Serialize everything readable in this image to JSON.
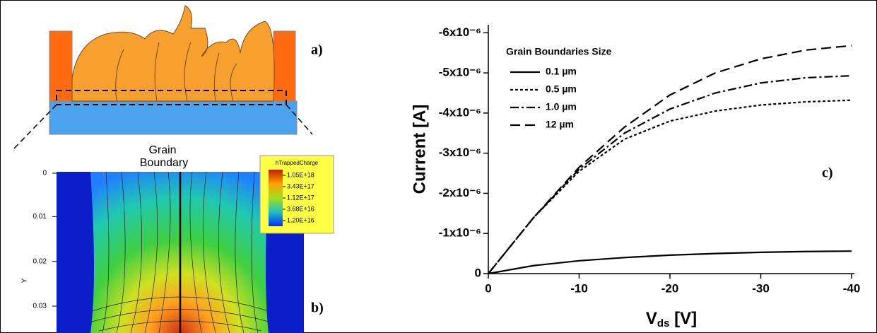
{
  "panel_a": {
    "label": "a)"
  },
  "panel_b": {
    "label": "b)",
    "title_lines": [
      "Grain",
      "Boundary"
    ],
    "ylabel": "Y",
    "yticks": [
      0,
      0.01,
      0.02,
      0.03
    ],
    "ylim": [
      0,
      0.036
    ],
    "colorbar": {
      "title": "hTrappedCharge",
      "ticks": [
        {
          "value": 1.05e+18,
          "label": "1.05E+18"
        },
        {
          "value": 3.43e+17,
          "label": "3.43E+17"
        },
        {
          "value": 1.12e+17,
          "label": "1.12E+17"
        },
        {
          "value": 3.68e+16,
          "label": "3.68E+16"
        },
        {
          "value": 1.2e+16,
          "label": "1.20E+16"
        }
      ]
    }
  },
  "chart_data": {
    "type": "line",
    "panel_label": "c)",
    "ylabel": "Current  [A]",
    "xlabel": {
      "symbol": "V",
      "subscript": "ds",
      "unit": " [V]"
    },
    "legend_title": "Grain Boundaries Size",
    "legend": "upper-left",
    "x": [
      0,
      -5,
      -10,
      -15,
      -20,
      -25,
      -30,
      -35,
      -40
    ],
    "xlim": [
      0,
      -40
    ],
    "xticks": [
      0,
      -10,
      -20,
      -30,
      -40
    ],
    "ylim": [
      0,
      -6.2e-06
    ],
    "yticks": [
      0,
      {
        "value": -1e-06,
        "label": "-1x10⁻⁶"
      },
      {
        "value": -2e-06,
        "label": "-2x10⁻⁶"
      },
      {
        "value": -3e-06,
        "label": "-3x10⁻⁶"
      },
      {
        "value": -4e-06,
        "label": "-4x10⁻⁶"
      },
      {
        "value": -5e-06,
        "label": "-5x10⁻⁶"
      },
      {
        "value": -6e-06,
        "label": "-6x10⁻⁶"
      }
    ],
    "series": [
      {
        "name": "0.1 µm",
        "color": "#000000",
        "dash": "solid",
        "values": [
          0,
          -2e-07,
          -3.2e-07,
          -4e-07,
          -4.6e-07,
          -5e-07,
          -5.3e-07,
          -5.5e-07,
          -5.6e-07
        ]
      },
      {
        "name": "0.5 µm",
        "color": "#000000",
        "dash": "short-dash",
        "values": [
          0,
          -1.4e-06,
          -2.55e-06,
          -3.35e-06,
          -3.8e-06,
          -4.05e-06,
          -4.2e-06,
          -4.28e-06,
          -4.32e-06
        ]
      },
      {
        "name": "1.0 µm",
        "color": "#000000",
        "dash": "dash-dot",
        "values": [
          0,
          -1.4e-06,
          -2.6e-06,
          -3.5e-06,
          -4.1e-06,
          -4.5e-06,
          -4.75e-06,
          -4.88e-06,
          -4.93e-06
        ]
      },
      {
        "name": "12  µm",
        "color": "#000000",
        "dash": "long-dash",
        "values": [
          0,
          -1.4e-06,
          -2.65e-06,
          -3.65e-06,
          -4.45e-06,
          -5e-06,
          -5.35e-06,
          -5.57e-06,
          -5.68e-06
        ]
      }
    ]
  }
}
